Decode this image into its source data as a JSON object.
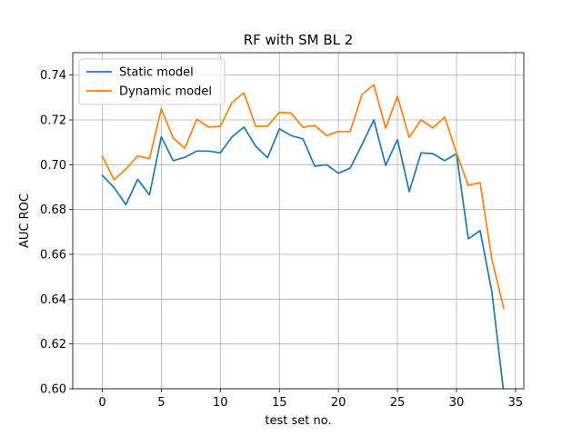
{
  "chart_data": {
    "type": "line",
    "title": "RF with SM BL 2",
    "xlabel": "test set no.",
    "ylabel": "AUC ROC",
    "xlim": [
      -2.5,
      35.7
    ],
    "ylim": [
      0.6,
      0.75
    ],
    "xticks": [
      0,
      5,
      10,
      15,
      20,
      25,
      30,
      35
    ],
    "xtick_labels": [
      "0",
      "5",
      "10",
      "15",
      "20",
      "25",
      "30",
      "35"
    ],
    "yticks": [
      0.6,
      0.62,
      0.64,
      0.66,
      0.68,
      0.7,
      0.72,
      0.74
    ],
    "ytick_labels": [
      "0.60",
      "0.62",
      "0.64",
      "0.66",
      "0.68",
      "0.70",
      "0.72",
      "0.74"
    ],
    "grid": true,
    "legend_position": "top-left",
    "x": [
      0,
      1,
      2,
      3,
      4,
      5,
      6,
      7,
      8,
      9,
      10,
      11,
      12,
      13,
      14,
      15,
      16,
      17,
      18,
      19,
      20,
      21,
      22,
      23,
      24,
      25,
      26,
      27,
      28,
      29,
      30,
      31,
      32,
      33,
      34
    ],
    "series": [
      {
        "name": "Static model",
        "color": "#1f77b4",
        "values": [
          0.6953,
          0.6898,
          0.6822,
          0.6935,
          0.6865,
          0.7125,
          0.7018,
          0.7033,
          0.7061,
          0.7061,
          0.7053,
          0.7125,
          0.7168,
          0.7082,
          0.7031,
          0.716,
          0.713,
          0.7115,
          0.6993,
          0.7,
          0.6962,
          0.6985,
          0.709,
          0.72,
          0.6997,
          0.7112,
          0.688,
          0.7053,
          0.7049,
          0.7018,
          0.7049,
          0.6669,
          0.6706,
          0.6432,
          0.598
        ]
      },
      {
        "name": "Dynamic model",
        "color": "#ff7f0e",
        "values": [
          0.7039,
          0.6933,
          0.698,
          0.7039,
          0.7027,
          0.7249,
          0.712,
          0.7073,
          0.7203,
          0.7168,
          0.7171,
          0.7278,
          0.7321,
          0.7171,
          0.7172,
          0.7234,
          0.723,
          0.7167,
          0.7175,
          0.713,
          0.7148,
          0.7148,
          0.7313,
          0.7357,
          0.7163,
          0.7305,
          0.7122,
          0.72,
          0.7164,
          0.7213,
          0.7053,
          0.6908,
          0.692,
          0.6578,
          0.6359
        ]
      }
    ]
  }
}
